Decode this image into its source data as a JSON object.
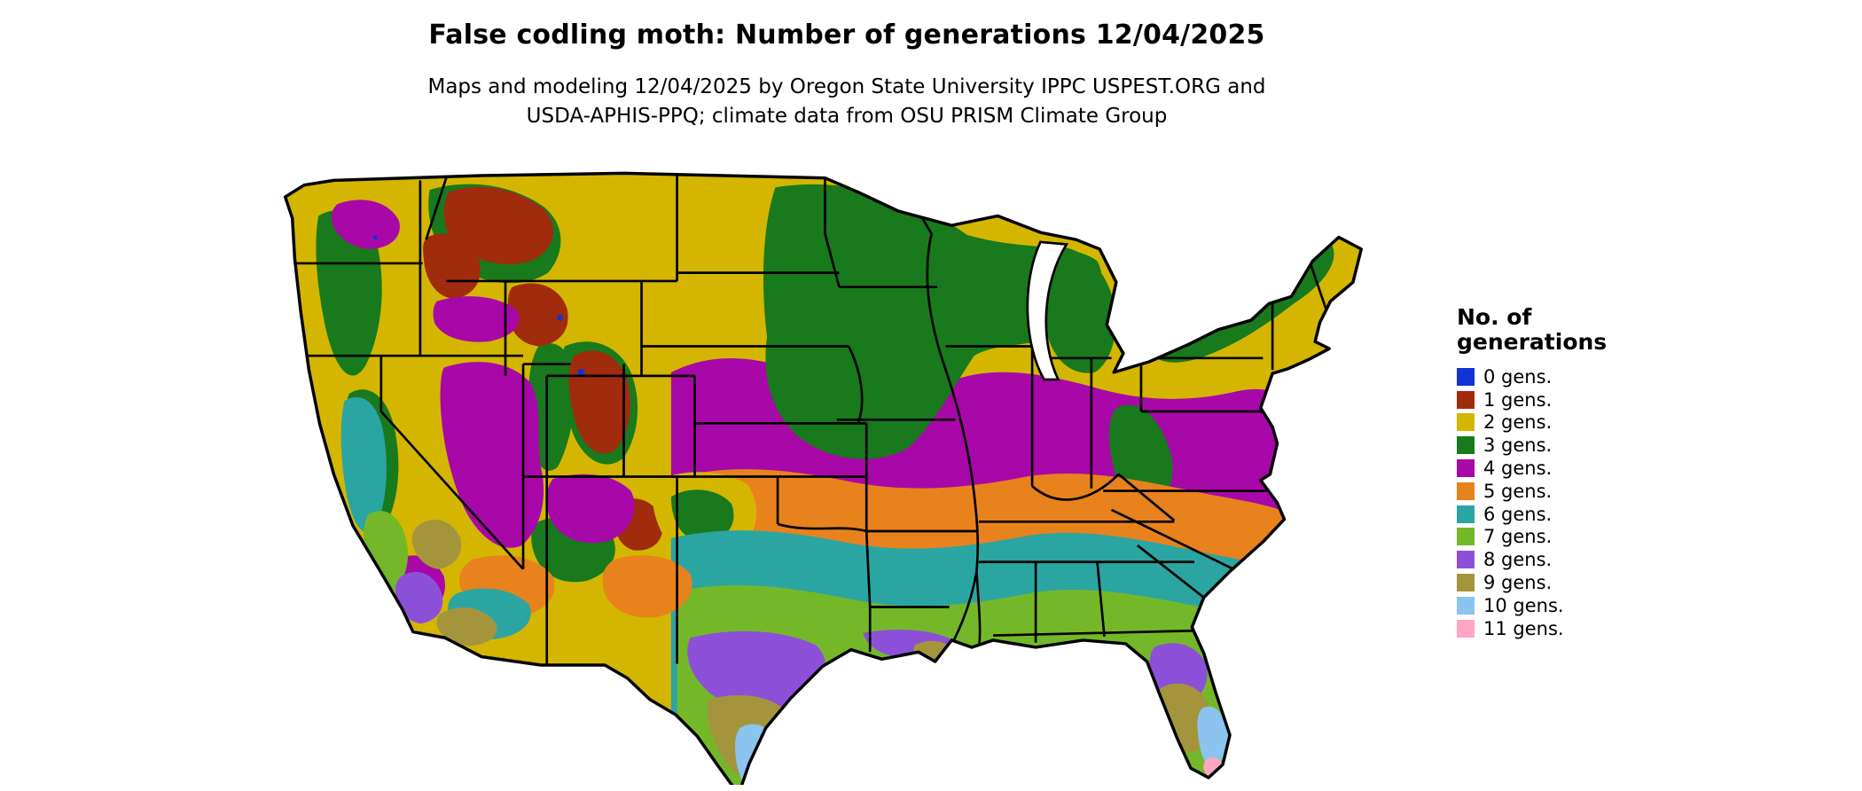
{
  "page": {
    "title": "False codling moth: Number of generations 12/04/2025",
    "subtitle_line1": "Maps and modeling 12/04/2025 by Oregon State University IPPC USPEST.ORG and",
    "subtitle_line2": "USDA-APHIS-PPQ; climate data from OSU PRISM Climate Group"
  },
  "legend": {
    "title_line1": "No. of",
    "title_line2": "generations",
    "items": [
      {
        "label": "0 gens.",
        "color": "#1133d4"
      },
      {
        "label": "1 gens.",
        "color": "#a12b0d"
      },
      {
        "label": "2 gens.",
        "color": "#d4b600"
      },
      {
        "label": "3 gens.",
        "color": "#187a1c"
      },
      {
        "label": "4 gens.",
        "color": "#a808a8"
      },
      {
        "label": "5 gens.",
        "color": "#e8821c"
      },
      {
        "label": "6 gens.",
        "color": "#2ba5a2"
      },
      {
        "label": "7 gens.",
        "color": "#74b82a"
      },
      {
        "label": "8 gens.",
        "color": "#8c50d8"
      },
      {
        "label": "9 gens.",
        "color": "#a4953d"
      },
      {
        "label": "10 gens.",
        "color": "#8ac4ef"
      },
      {
        "label": "11 gens.",
        "color": "#ffa6c4"
      }
    ]
  },
  "map": {
    "description": "Continental United States colored by modeled number of false codling moth generations"
  }
}
